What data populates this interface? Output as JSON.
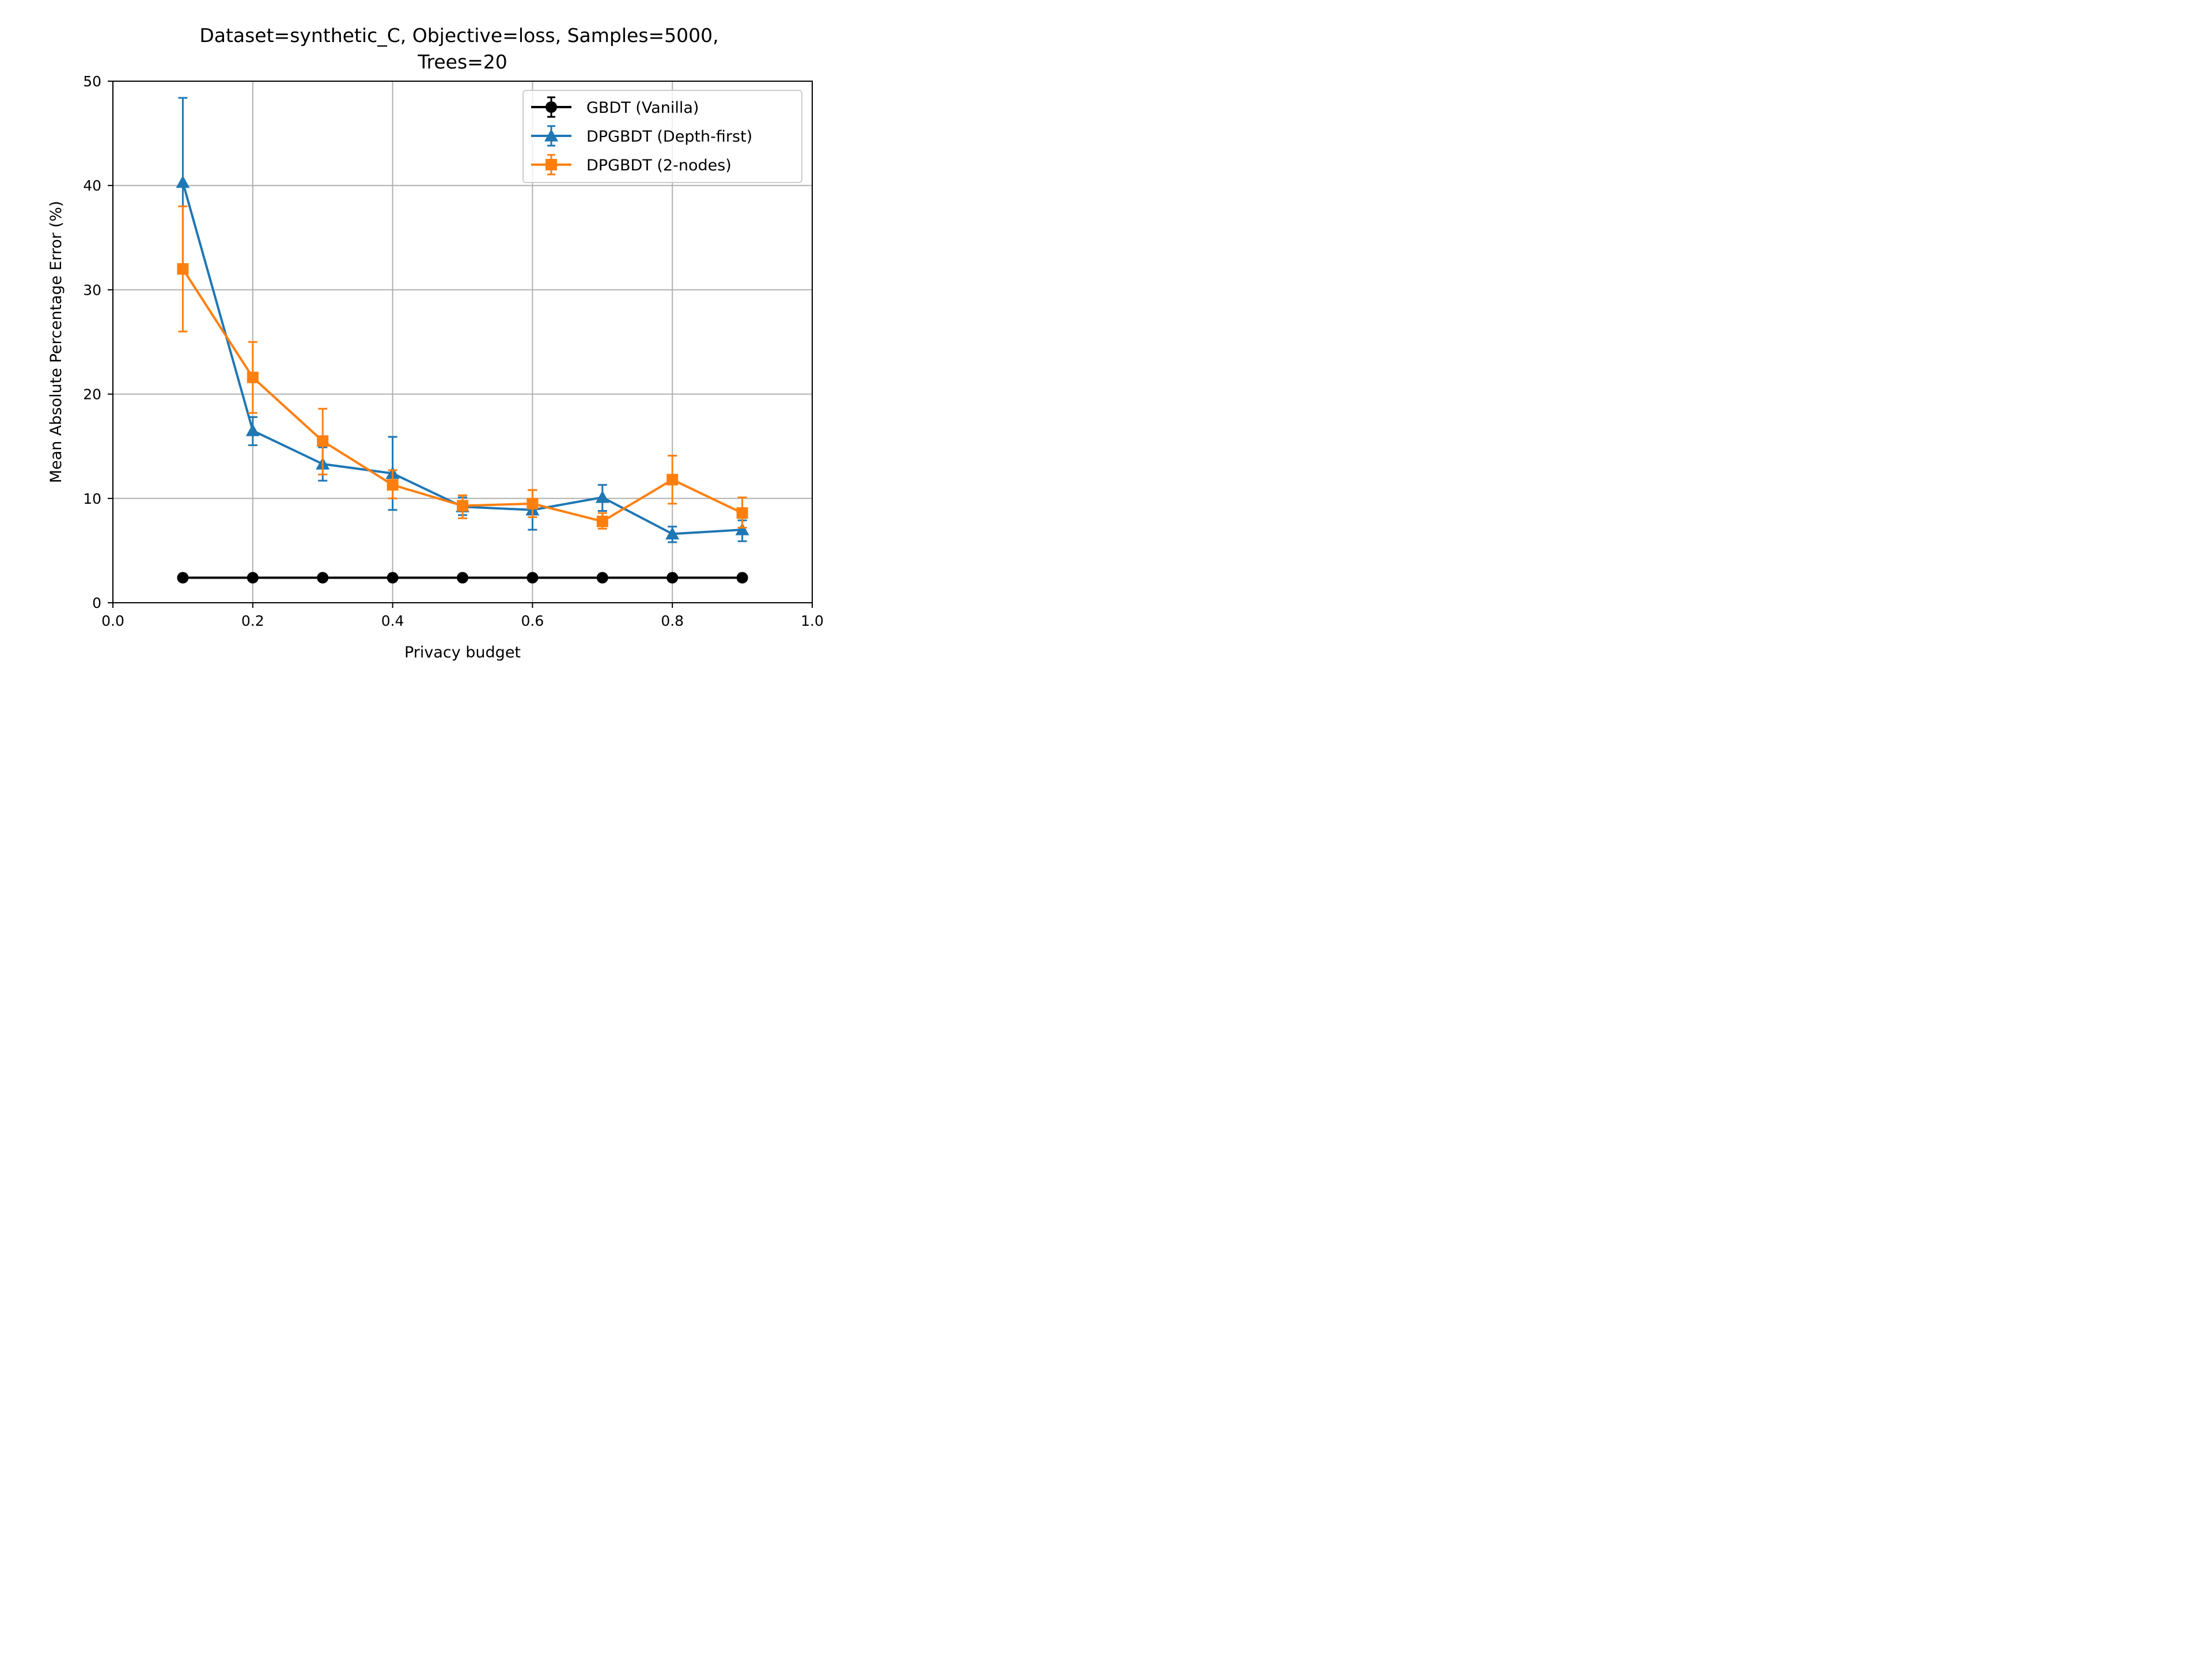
{
  "chart_data": {
    "type": "line",
    "title_lines": [
      "Dataset=synthetic_C, Objective=loss, Samples=5000,",
      "Trees=20"
    ],
    "xlabel": "Privacy budget",
    "ylabel": "Mean Absolute Percentage Error (%)",
    "xlim": [
      0.0,
      1.0
    ],
    "ylim": [
      0,
      50
    ],
    "xticks": [
      0.0,
      0.2,
      0.4,
      0.6,
      0.8,
      1.0
    ],
    "xtick_labels": [
      "0.0",
      "0.2",
      "0.4",
      "0.6",
      "0.8",
      "1.0"
    ],
    "yticks": [
      0,
      10,
      20,
      30,
      40,
      50
    ],
    "ytick_labels": [
      "0",
      "10",
      "20",
      "30",
      "40",
      "50"
    ],
    "grid": true,
    "legend_position": "top-right",
    "x": [
      0.1,
      0.2,
      0.3,
      0.4,
      0.5,
      0.6,
      0.7,
      0.8,
      0.9
    ],
    "series": [
      {
        "name": "GBDT (Vanilla)",
        "color": "#000000",
        "marker": "circle",
        "values": [
          2.4,
          2.4,
          2.4,
          2.4,
          2.4,
          2.4,
          2.4,
          2.4,
          2.4
        ],
        "err_low": [
          2.4,
          2.4,
          2.4,
          2.4,
          2.4,
          2.4,
          2.4,
          2.4,
          2.4
        ],
        "err_high": [
          2.4,
          2.4,
          2.4,
          2.4,
          2.4,
          2.4,
          2.4,
          2.4,
          2.4
        ]
      },
      {
        "name": "DPGBDT (Depth-first)",
        "color": "#1f77b4",
        "marker": "triangle",
        "values": [
          40.3,
          16.5,
          13.3,
          12.4,
          9.2,
          8.9,
          10.1,
          6.6,
          7.0
        ],
        "err_low": [
          32.1,
          15.1,
          11.7,
          8.9,
          8.4,
          7.0,
          8.8,
          5.8,
          5.9
        ],
        "err_high": [
          48.4,
          17.8,
          14.9,
          15.9,
          10.1,
          10.8,
          11.3,
          7.3,
          7.9
        ]
      },
      {
        "name": "DPGBDT (2-nodes)",
        "color": "#ff7f0e",
        "marker": "square",
        "values": [
          32.0,
          21.6,
          15.5,
          11.3,
          9.3,
          9.5,
          7.8,
          11.8,
          8.6
        ],
        "err_low": [
          26.0,
          18.2,
          12.3,
          10.0,
          8.1,
          8.2,
          7.1,
          9.5,
          7.2
        ],
        "err_high": [
          38.0,
          25.0,
          18.6,
          12.7,
          10.3,
          10.8,
          8.6,
          14.1,
          10.1
        ]
      }
    ]
  }
}
